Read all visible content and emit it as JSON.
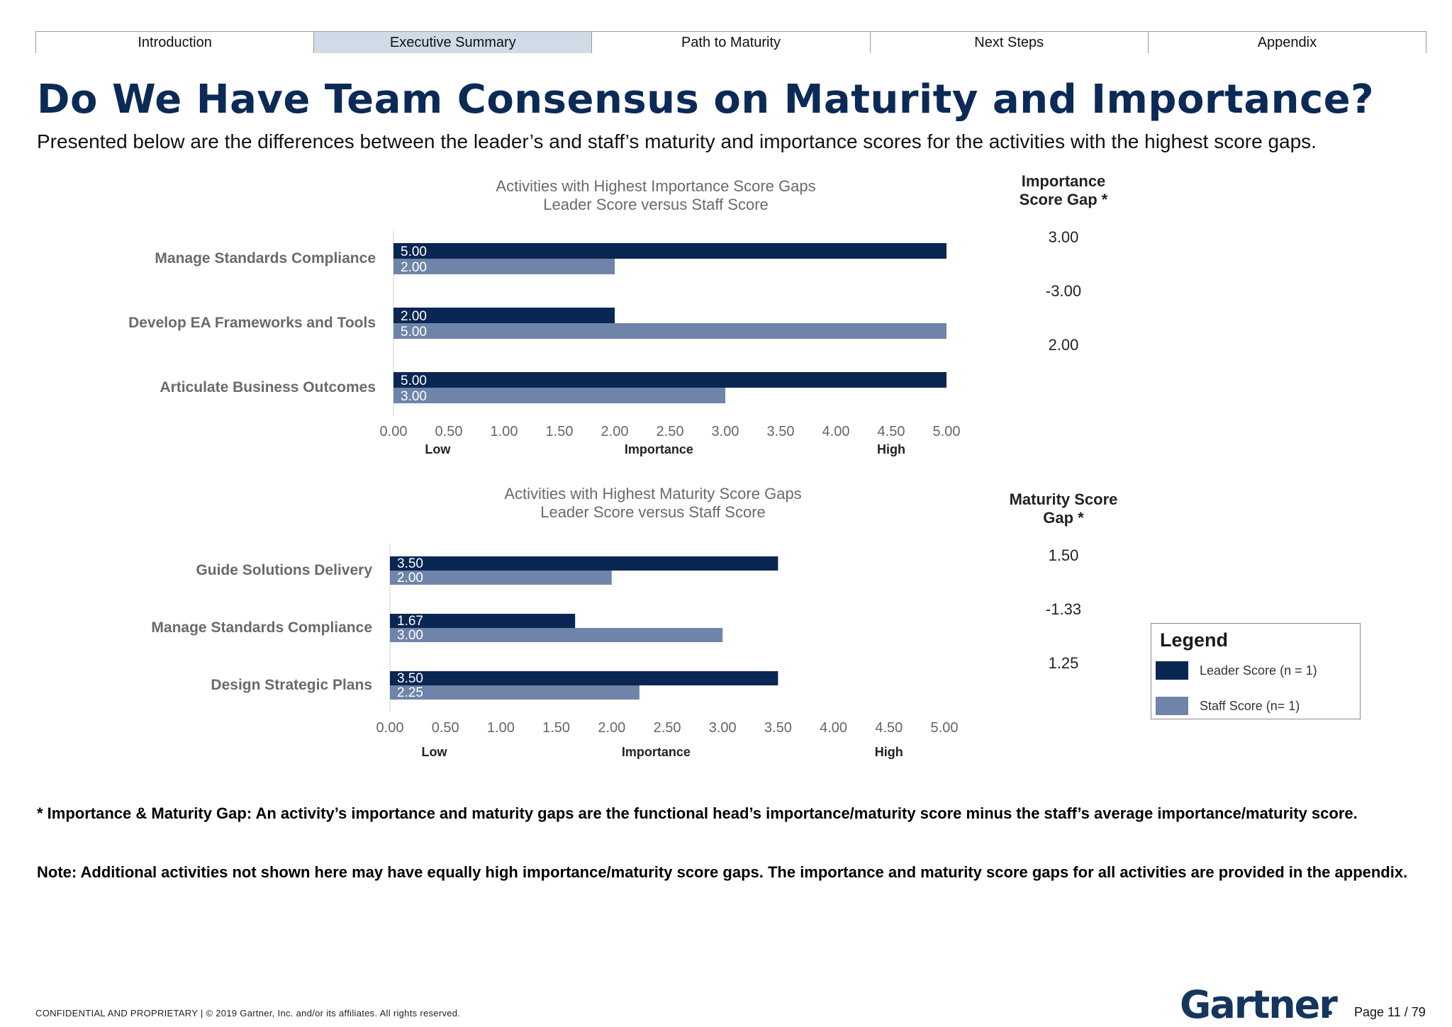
{
  "nav": {
    "tabs": [
      {
        "label": "Introduction",
        "active": false
      },
      {
        "label": "Executive Summary",
        "active": true
      },
      {
        "label": "Path to Maturity",
        "active": false
      },
      {
        "label": "Next Steps",
        "active": false
      },
      {
        "label": "Appendix",
        "active": false
      }
    ]
  },
  "page": {
    "title": "Do We Have Team Consensus on Maturity and Importance?",
    "subtitle": "Presented below are the differences between the leader’s and staff’s maturity and importance scores for the activities with the highest score gaps."
  },
  "colors": {
    "leader": "#0a2652",
    "staff": "#6f84a8",
    "title": "#0b2a56"
  },
  "chart_data": [
    {
      "type": "bar",
      "orientation": "horizontal",
      "title": "Activities with Highest Importance Score Gaps",
      "subtitle": "Leader Score versus Staff Score",
      "categories": [
        "Manage Standards Compliance",
        "Develop EA Frameworks and Tools",
        "Articulate Business Outcomes"
      ],
      "series": [
        {
          "name": "Leader Score (n = 1)",
          "values": [
            5.0,
            2.0,
            5.0
          ]
        },
        {
          "name": "Staff Score (n= 1)",
          "values": [
            2.0,
            5.0,
            3.0
          ]
        }
      ],
      "xlim": [
        0,
        5
      ],
      "xticks": [
        "0.00",
        "0.50",
        "1.00",
        "1.50",
        "2.00",
        "2.50",
        "3.00",
        "3.50",
        "4.00",
        "4.50",
        "5.00"
      ],
      "xlabel": "Importance",
      "xlabel_low": "Low",
      "xlabel_high": "High",
      "gap_header": [
        "Importance",
        "Score Gap *"
      ],
      "gaps": [
        "3.00",
        "-3.00",
        "2.00"
      ]
    },
    {
      "type": "bar",
      "orientation": "horizontal",
      "title": "Activities with Highest Maturity Score Gaps",
      "subtitle": "Leader Score versus Staff Score",
      "categories": [
        "Guide Solutions Delivery",
        "Manage Standards Compliance",
        "Design Strategic Plans"
      ],
      "series": [
        {
          "name": "Leader Score (n = 1)",
          "values": [
            3.5,
            1.67,
            3.5
          ]
        },
        {
          "name": "Staff Score (n= 1)",
          "values": [
            2.0,
            3.0,
            2.25
          ]
        }
      ],
      "xlim": [
        0,
        5
      ],
      "xticks": [
        "0.00",
        "0.50",
        "1.00",
        "1.50",
        "2.00",
        "2.50",
        "3.00",
        "3.50",
        "4.00",
        "4.50",
        "5.00"
      ],
      "xlabel": "Importance",
      "xlabel_low": "Low",
      "xlabel_high": "High",
      "gap_header": [
        "Maturity Score",
        "Gap *"
      ],
      "gaps": [
        "1.50",
        "-1.33",
        "1.25"
      ]
    }
  ],
  "legend": {
    "title": "Legend",
    "items": [
      {
        "label": "Leader Score (n = 1)",
        "color": "#0a2652"
      },
      {
        "label": "Staff Score (n= 1)",
        "color": "#6f84a8"
      }
    ]
  },
  "notes": {
    "gap_definition": "* Importance & Maturity Gap: An activity’s importance and maturity gaps are the functional head’s importance/maturity score minus the staff’s average importance/maturity score.",
    "additional": "Note: Additional activities not shown here may have equally high importance/maturity score gaps. The importance and maturity score gaps for all activities are provided in the appendix."
  },
  "footer": {
    "confidential": "CONFIDENTIAL AND PROPRIETARY  |  © 2019 Gartner, Inc. and/or its affiliates. All rights reserved.",
    "logo": "Gartner",
    "page": "Page 11 / 79"
  }
}
